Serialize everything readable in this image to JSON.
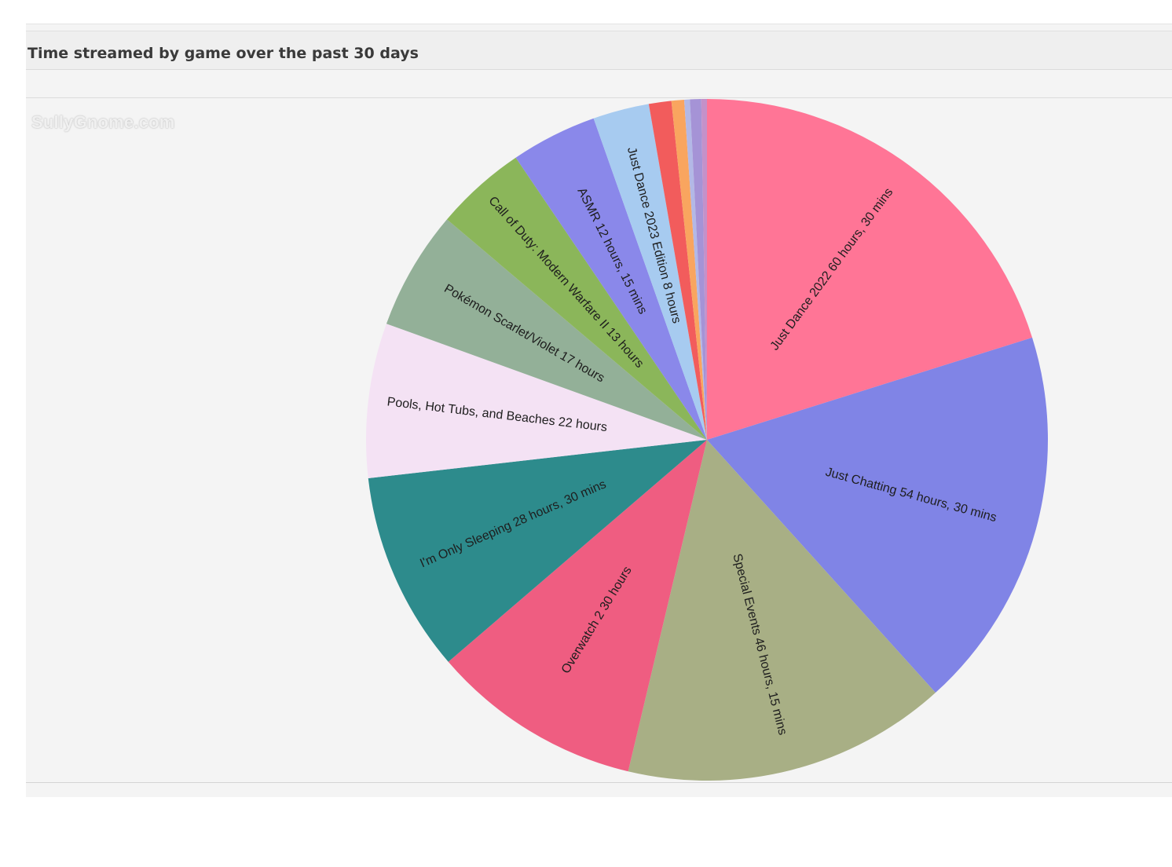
{
  "header": {
    "title": "Time streamed by game over the past 30 days"
  },
  "watermark": {
    "text": "SullyGnome.com"
  },
  "chart_data": {
    "type": "pie",
    "title": "Time streamed by game over the past 30 days",
    "unit": "hours",
    "start": "12 o'clock, clockwise",
    "slices": [
      {
        "name": "Just Dance 2022",
        "label": "Just Dance 2022 60 hours, 30 mins",
        "value": 60.5,
        "color": "#ff7596"
      },
      {
        "name": "Just Chatting",
        "label": "Just Chatting 54 hours, 30 mins",
        "value": 54.5,
        "color": "#8084e6"
      },
      {
        "name": "Special Events",
        "label": "Special Events 46 hours, 15 mins",
        "value": 46.25,
        "color": "#a8af85"
      },
      {
        "name": "Overwatch 2",
        "label": "Overwatch 2 30 hours",
        "value": 30,
        "color": "#ef5d81"
      },
      {
        "name": "I'm Only Sleeping",
        "label": "I'm Only Sleeping 28 hours, 30 mins",
        "value": 28.5,
        "color": "#2d8b8c"
      },
      {
        "name": "Pools, Hot Tubs, and Beaches",
        "label": "Pools, Hot Tubs, and Beaches 22 hours",
        "value": 22,
        "color": "#f4e2f4"
      },
      {
        "name": "Pokémon Scarlet/Violet",
        "label": "Pokémon Scarlet/Violet 17 hours",
        "value": 17,
        "color": "#93b098"
      },
      {
        "name": "Call of Duty: Modern Warfare II",
        "label": "Call of Duty: Modern Warfare II 13 hours",
        "value": 13,
        "color": "#8bb65a"
      },
      {
        "name": "ASMR",
        "label": "ASMR 12 hours, 15 mins",
        "value": 12.25,
        "color": "#8a88ea"
      },
      {
        "name": "Just Dance 2023 Edition",
        "label": "Just Dance 2023 Edition 8 hours",
        "value": 8,
        "color": "#a7cbf0"
      },
      {
        "name": "",
        "label": "",
        "value": 3.2,
        "color": "#f25c5c"
      },
      {
        "name": "",
        "label": "",
        "value": 1.8,
        "color": "#f9a55f"
      },
      {
        "name": "",
        "label": "",
        "value": 0.8,
        "color": "#b3b8e6"
      },
      {
        "name": "",
        "label": "",
        "value": 1.6,
        "color": "#a593d6"
      },
      {
        "name": "",
        "label": "",
        "value": 0.8,
        "color": "#c491c9"
      }
    ]
  }
}
